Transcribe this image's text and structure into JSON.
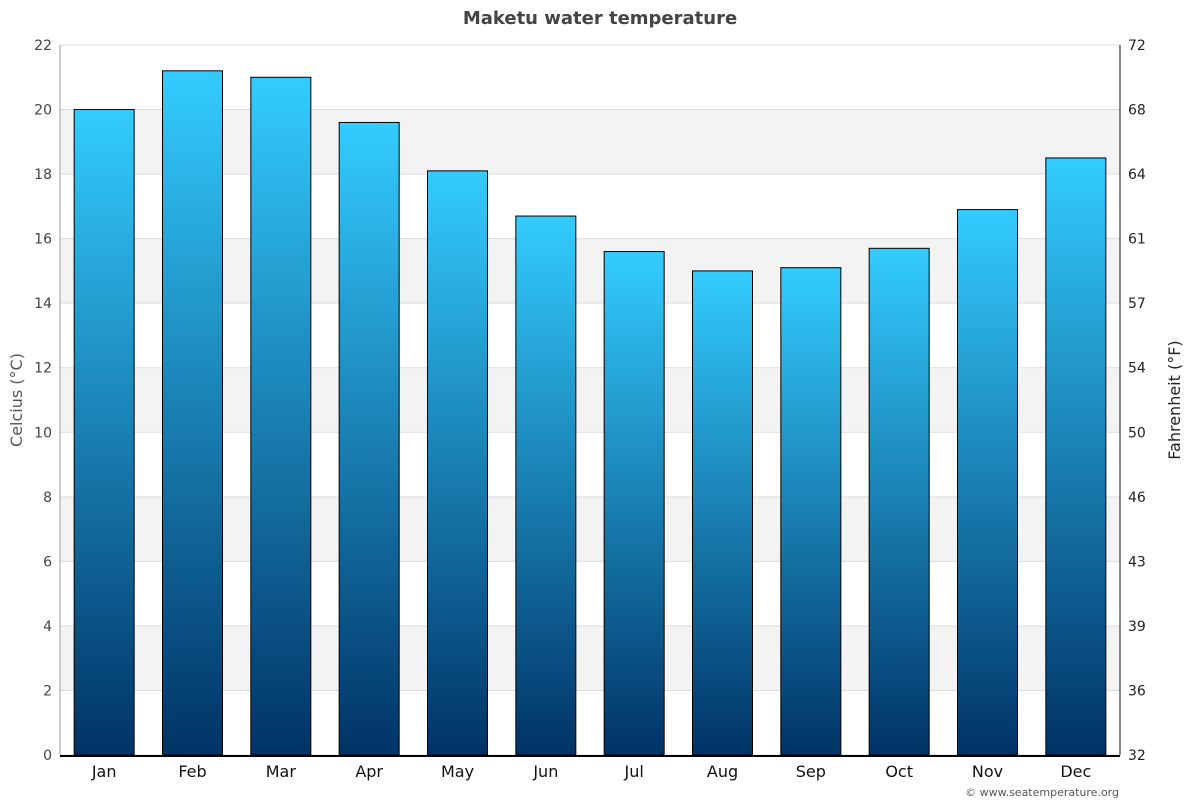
{
  "chart_data": {
    "type": "bar",
    "title": "Maketu water temperature",
    "ylabel": "Celcius (°C)",
    "ylabel_right": "Fahrenheit (°F)",
    "ylim": [
      0,
      22
    ],
    "yticks": [
      0,
      2,
      4,
      6,
      8,
      10,
      12,
      14,
      16,
      18,
      20,
      22
    ],
    "yticks_right": [
      "32",
      "36",
      "39",
      "43",
      "46",
      "50",
      "54",
      "57",
      "61",
      "64",
      "68",
      "72"
    ],
    "categories": [
      "Jan",
      "Feb",
      "Mar",
      "Apr",
      "May",
      "Jun",
      "Jul",
      "Aug",
      "Sep",
      "Oct",
      "Nov",
      "Dec"
    ],
    "values": [
      20.0,
      21.2,
      21.0,
      19.6,
      18.1,
      16.7,
      15.6,
      15.0,
      15.1,
      15.7,
      16.9,
      18.5
    ],
    "grid": true,
    "colors": {
      "bar_top": "#33ccff",
      "bar_bottom": "#003366",
      "band": "#f3f3f3"
    }
  },
  "credit": "© www.seatemperature.org"
}
